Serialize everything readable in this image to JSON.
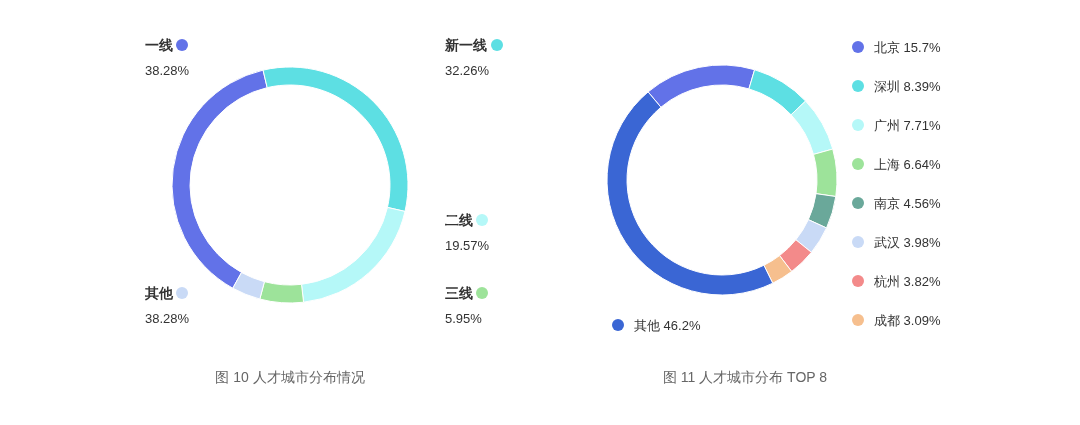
{
  "chart_data": [
    {
      "type": "donut",
      "categories": [
        "一线",
        "新一线",
        "二线",
        "三线",
        "其他"
      ],
      "values": [
        38.28,
        32.26,
        19.57,
        5.95,
        3.94
      ],
      "value_labels": [
        "38.28%",
        "32.26%",
        "19.57%",
        "5.95%",
        null
      ],
      "colors": [
        "#6272e8",
        "#5ddfe3",
        "#b5f8f8",
        "#9de39a",
        "#c9daf6"
      ],
      "legend": "top right",
      "annotations": [
        "图 10 人才城市分布情况",
        "38.28%"
      ]
    },
    {
      "type": "donut",
      "categories": [
        "北京",
        "深圳",
        "广州",
        "上海",
        "南京",
        "武汉",
        "杭州",
        "成都",
        "其他"
      ],
      "values": [
        15.7,
        8.39,
        7.71,
        6.64,
        4.56,
        3.98,
        3.82,
        3.09,
        46.2
      ],
      "value_labels": [
        "15.7%",
        "8.39%",
        "7.71%",
        "6.64%",
        "4.56%",
        "3.98%",
        "3.82%",
        "3.09%",
        "46.2%"
      ],
      "colors": [
        "#6272e8",
        "#5ddfe3",
        "#b5f8f8",
        "#9de39a",
        "#6aa89a",
        "#c9daf6",
        "#f38a8a",
        "#f6bf8e",
        "#3a66d4"
      ],
      "legend": "right",
      "annotations": [
        "图 11 人才城市分布 TOP 8"
      ]
    }
  ]
}
